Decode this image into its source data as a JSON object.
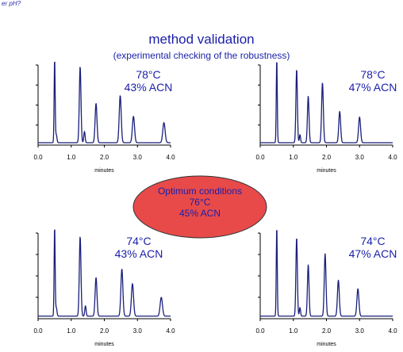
{
  "corner_text": "er pH?",
  "header": {
    "title": "method validation",
    "subtitle": "(experimental checking of the robustness)"
  },
  "center": {
    "line1": "Optimum conditions",
    "line2": "76°C",
    "line3": "45% ACN",
    "fill": "#e84a4a"
  },
  "colors": {
    "trace": "#1a1f7a",
    "text": "#1a1fa8"
  },
  "chart_data": [
    {
      "type": "line",
      "id": "top-left",
      "label_temp": "78°C",
      "label_acn": "43% ACN",
      "xlabel": "minutes",
      "xlim": [
        0,
        4
      ],
      "xticks": [
        "0.0",
        "1.0",
        "2.0",
        "3.0",
        "4.0"
      ],
      "baseline": 0.03,
      "peaks": [
        [
          0.5,
          1.05,
          0.015
        ],
        [
          0.55,
          0.1,
          0.02
        ],
        [
          1.27,
          0.95,
          0.025
        ],
        [
          1.4,
          0.14,
          0.02
        ],
        [
          1.75,
          0.49,
          0.028
        ],
        [
          2.48,
          0.59,
          0.03
        ],
        [
          2.88,
          0.33,
          0.032
        ],
        [
          3.8,
          0.25,
          0.035
        ]
      ]
    },
    {
      "type": "line",
      "id": "top-right",
      "label_temp": "78°C",
      "label_acn": "47% ACN",
      "xlabel": "minutes",
      "xlim": [
        0,
        4
      ],
      "xticks": [
        "0.0",
        "1.0",
        "2.0",
        "3.0",
        "4.0"
      ],
      "baseline": 0.03,
      "peaks": [
        [
          0.5,
          1.05,
          0.015
        ],
        [
          1.1,
          0.92,
          0.022
        ],
        [
          1.2,
          0.1,
          0.018
        ],
        [
          1.45,
          0.58,
          0.024
        ],
        [
          1.88,
          0.75,
          0.026
        ],
        [
          2.4,
          0.39,
          0.028
        ],
        [
          3.0,
          0.32,
          0.03
        ]
      ]
    },
    {
      "type": "line",
      "id": "bottom-left",
      "label_temp": "74°C",
      "label_acn": "43% ACN",
      "xlabel": "minutes",
      "xlim": [
        0,
        4
      ],
      "xticks": [
        "0.0",
        "1.0",
        "2.0",
        "3.0",
        "4.0"
      ],
      "baseline": 0.03,
      "peaks": [
        [
          0.5,
          1.05,
          0.015
        ],
        [
          0.55,
          0.1,
          0.02
        ],
        [
          1.27,
          0.93,
          0.025
        ],
        [
          1.43,
          0.12,
          0.02
        ],
        [
          1.75,
          0.45,
          0.028
        ],
        [
          2.53,
          0.55,
          0.03
        ],
        [
          2.85,
          0.38,
          0.032
        ],
        [
          3.72,
          0.22,
          0.035
        ]
      ]
    },
    {
      "type": "line",
      "id": "bottom-right",
      "label_temp": "74°C",
      "label_acn": "47% ACN",
      "xlabel": "minutes",
      "xlim": [
        0,
        4
      ],
      "xticks": [
        "0.0",
        "1.0",
        "2.0",
        "3.0",
        "4.0"
      ],
      "baseline": 0.03,
      "peaks": [
        [
          0.5,
          1.05,
          0.015
        ],
        [
          1.1,
          0.92,
          0.022
        ],
        [
          1.2,
          0.1,
          0.018
        ],
        [
          1.45,
          0.6,
          0.024
        ],
        [
          1.96,
          0.73,
          0.026
        ],
        [
          2.36,
          0.42,
          0.028
        ],
        [
          2.95,
          0.32,
          0.03
        ]
      ]
    }
  ]
}
